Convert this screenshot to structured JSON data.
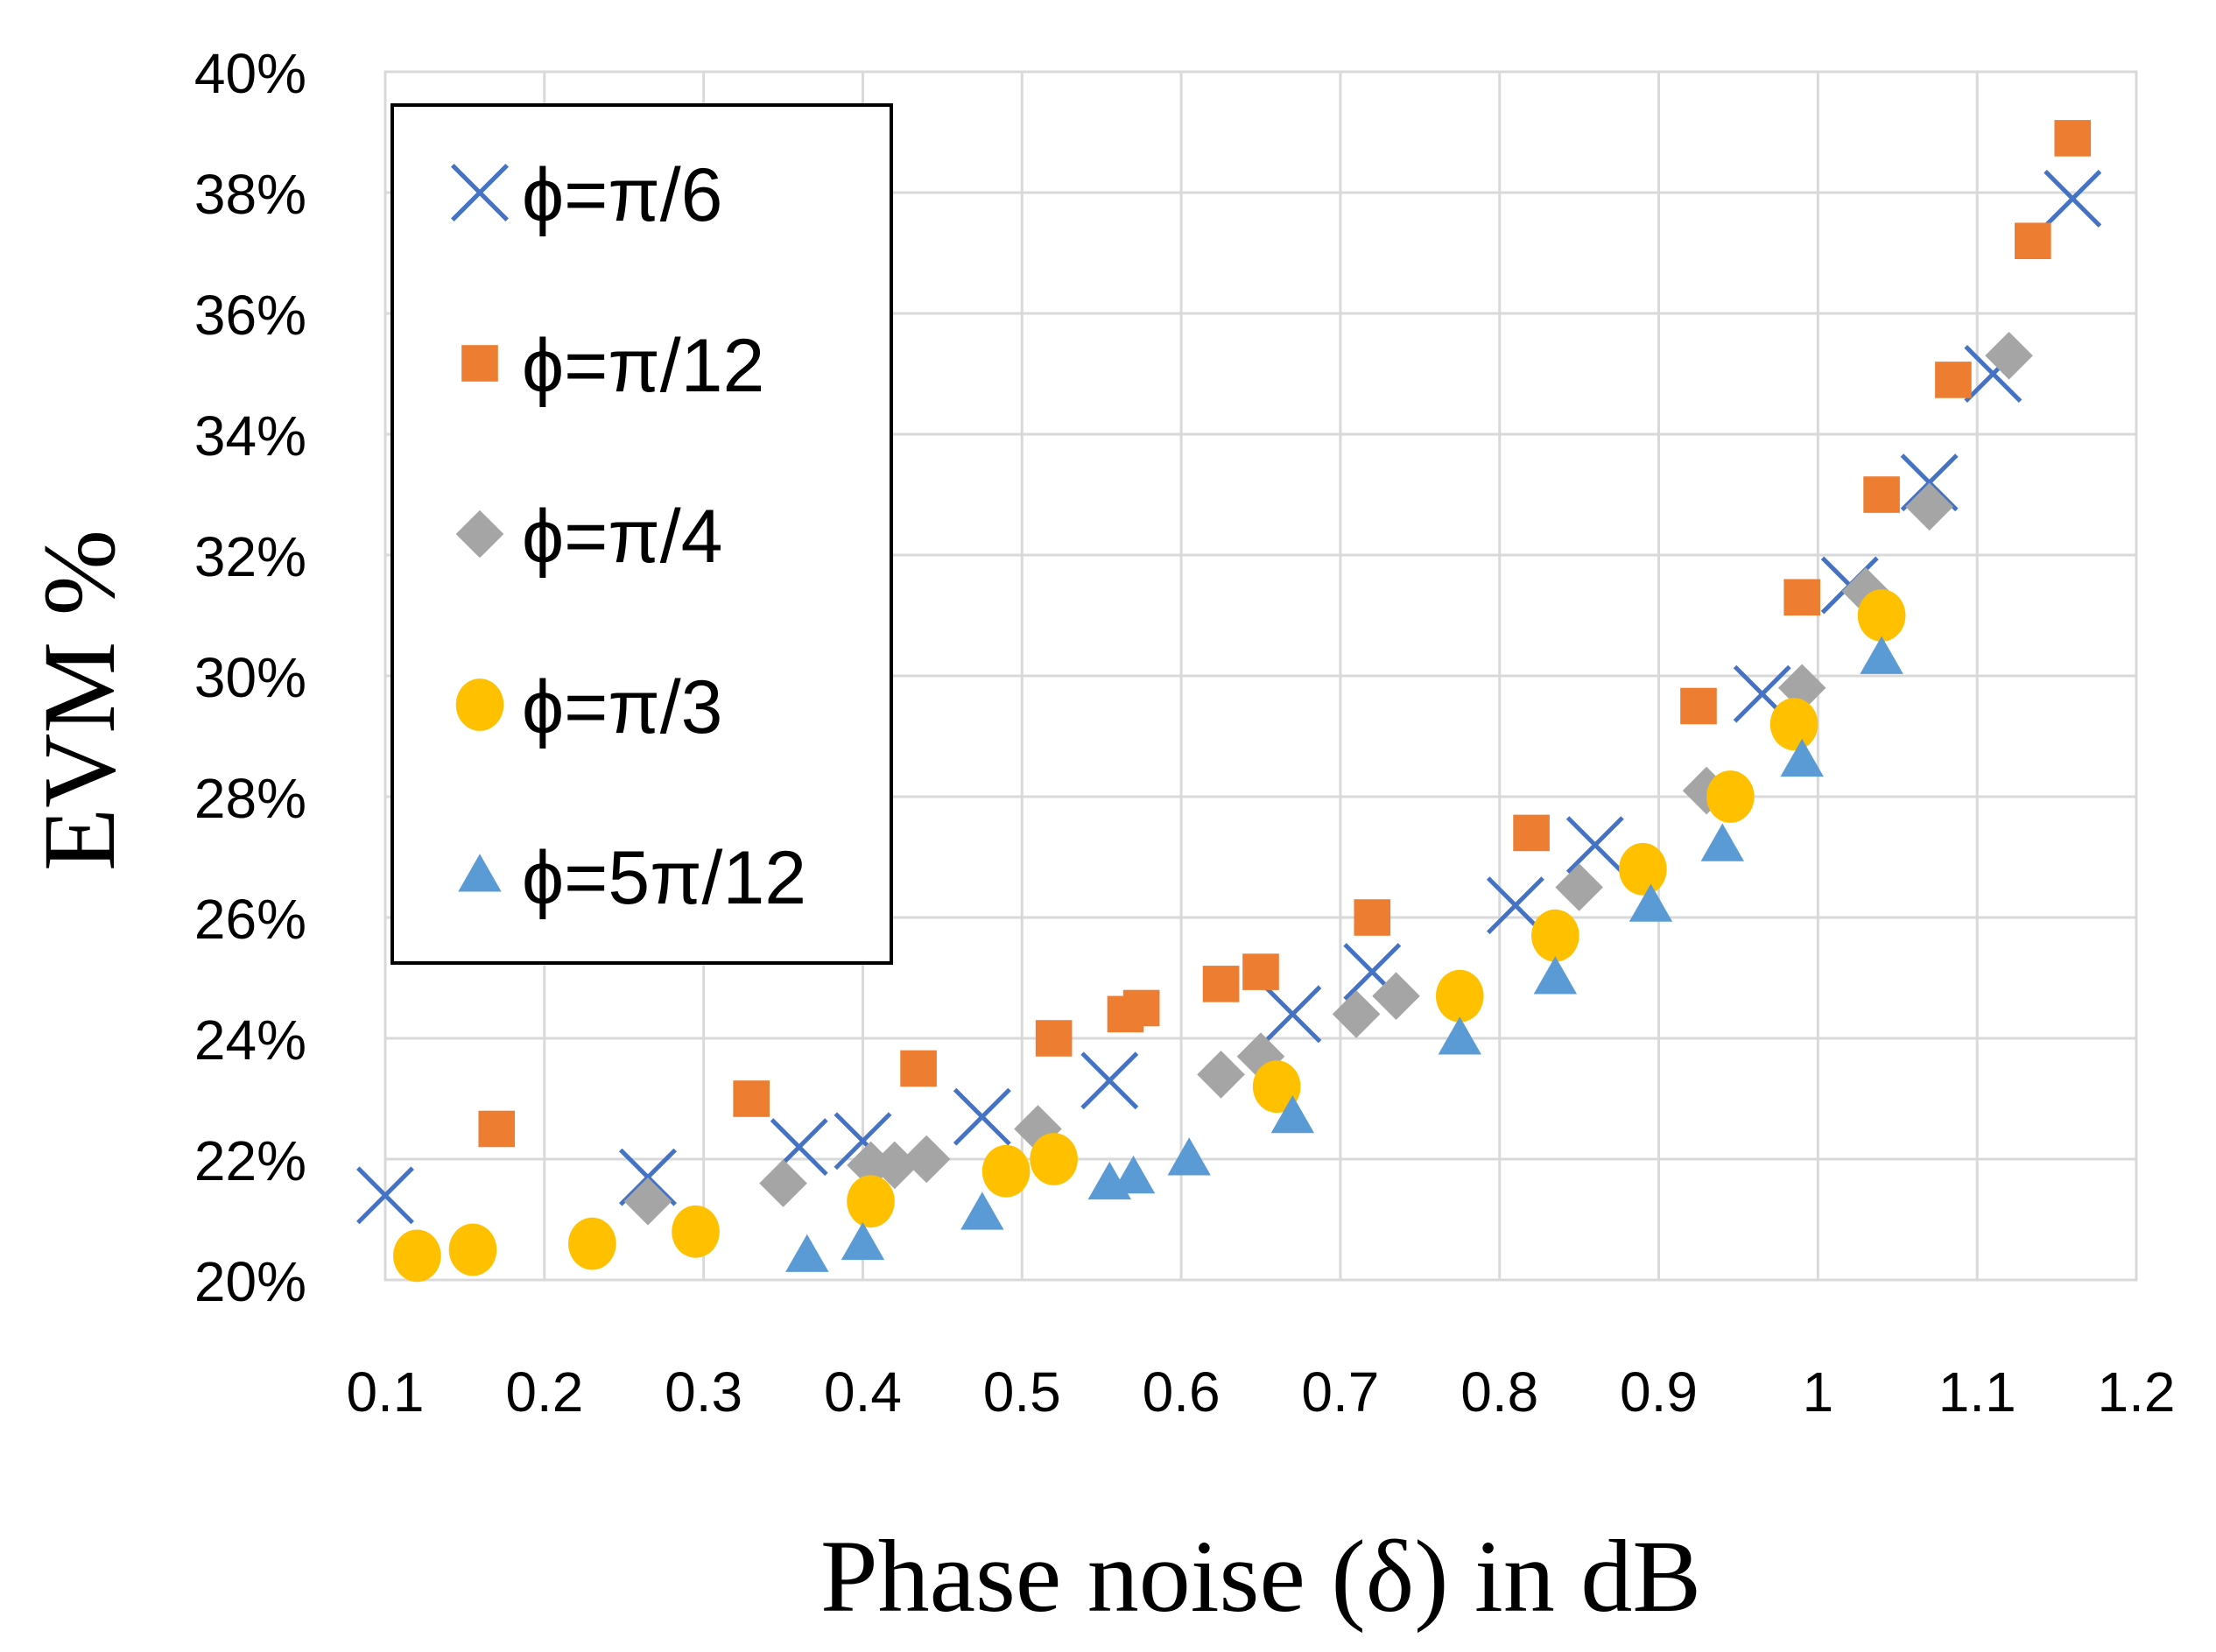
{
  "chart_data": {
    "type": "scatter",
    "xlabel": "Phase noise (δ) in dB",
    "ylabel": "EVM %",
    "xlim": [
      0.1,
      1.2
    ],
    "ylim": [
      20,
      40
    ],
    "x_ticks": [
      "0.1",
      "0.2",
      "0.3",
      "0.4",
      "0.5",
      "0.6",
      "0.7",
      "0.8",
      "0.9",
      "1",
      "1.1",
      "1.2"
    ],
    "y_ticks": [
      "20%",
      "22%",
      "24%",
      "26%",
      "28%",
      "30%",
      "32%",
      "34%",
      "36%",
      "38%",
      "40%"
    ],
    "grid": true,
    "legend_position": "top-left",
    "series": [
      {
        "name": "ϕ=π/6",
        "marker": "x",
        "color": "#4472C4",
        "points": [
          [
            0.1,
            21.4
          ],
          [
            0.265,
            21.7
          ],
          [
            0.36,
            22.2
          ],
          [
            0.4,
            22.3
          ],
          [
            0.475,
            22.7
          ],
          [
            0.555,
            23.3
          ],
          [
            0.67,
            24.4
          ],
          [
            0.72,
            25.1
          ],
          [
            0.81,
            26.2
          ],
          [
            0.86,
            27.2
          ],
          [
            0.965,
            29.7
          ],
          [
            1.02,
            31.5
          ],
          [
            1.07,
            33.2
          ],
          [
            1.11,
            35.0
          ],
          [
            1.16,
            37.9
          ]
        ]
      },
      {
        "name": "ϕ=π/12",
        "marker": "square",
        "color": "#ED7D31",
        "points": [
          [
            0.17,
            22.5
          ],
          [
            0.33,
            23.0
          ],
          [
            0.435,
            23.5
          ],
          [
            0.52,
            24.0
          ],
          [
            0.565,
            24.4
          ],
          [
            0.575,
            24.5
          ],
          [
            0.625,
            24.9
          ],
          [
            0.65,
            25.1
          ],
          [
            0.72,
            26.0
          ],
          [
            0.82,
            27.4
          ],
          [
            0.925,
            29.5
          ],
          [
            0.99,
            31.3
          ],
          [
            1.04,
            33.0
          ],
          [
            1.085,
            34.9
          ],
          [
            1.135,
            37.2
          ],
          [
            1.16,
            38.9
          ]
        ]
      },
      {
        "name": "ϕ=π/4",
        "marker": "diamond",
        "color": "#A5A5A5",
        "points": [
          [
            0.265,
            21.3
          ],
          [
            0.35,
            21.6
          ],
          [
            0.405,
            21.9
          ],
          [
            0.42,
            21.9
          ],
          [
            0.44,
            22.0
          ],
          [
            0.51,
            22.5
          ],
          [
            0.625,
            23.4
          ],
          [
            0.65,
            23.7
          ],
          [
            0.71,
            24.4
          ],
          [
            0.735,
            24.7
          ],
          [
            0.85,
            26.5
          ],
          [
            0.93,
            28.1
          ],
          [
            0.99,
            29.8
          ],
          [
            1.03,
            31.4
          ],
          [
            1.07,
            32.8
          ],
          [
            1.12,
            35.3
          ]
        ]
      },
      {
        "name": "ϕ=π/3",
        "marker": "circle",
        "color": "#FFC000",
        "points": [
          [
            0.12,
            20.4
          ],
          [
            0.155,
            20.5
          ],
          [
            0.23,
            20.6
          ],
          [
            0.295,
            20.8
          ],
          [
            0.405,
            21.3
          ],
          [
            0.49,
            21.8
          ],
          [
            0.52,
            22.0
          ],
          [
            0.66,
            23.2
          ],
          [
            0.775,
            24.7
          ],
          [
            0.835,
            25.7
          ],
          [
            0.89,
            26.8
          ],
          [
            0.945,
            28.0
          ],
          [
            0.985,
            29.2
          ],
          [
            1.04,
            31.0
          ]
        ]
      },
      {
        "name": "ϕ=5π/12",
        "marker": "triangle",
        "color": "#5B9BD5",
        "points": [
          [
            0.365,
            20.4
          ],
          [
            0.4,
            20.6
          ],
          [
            0.475,
            21.1
          ],
          [
            0.555,
            21.6
          ],
          [
            0.57,
            21.7
          ],
          [
            0.605,
            22.0
          ],
          [
            0.67,
            22.7
          ],
          [
            0.775,
            24.0
          ],
          [
            0.835,
            25.0
          ],
          [
            0.895,
            26.2
          ],
          [
            0.94,
            27.2
          ],
          [
            0.99,
            28.6
          ],
          [
            1.04,
            30.3
          ]
        ]
      }
    ]
  }
}
